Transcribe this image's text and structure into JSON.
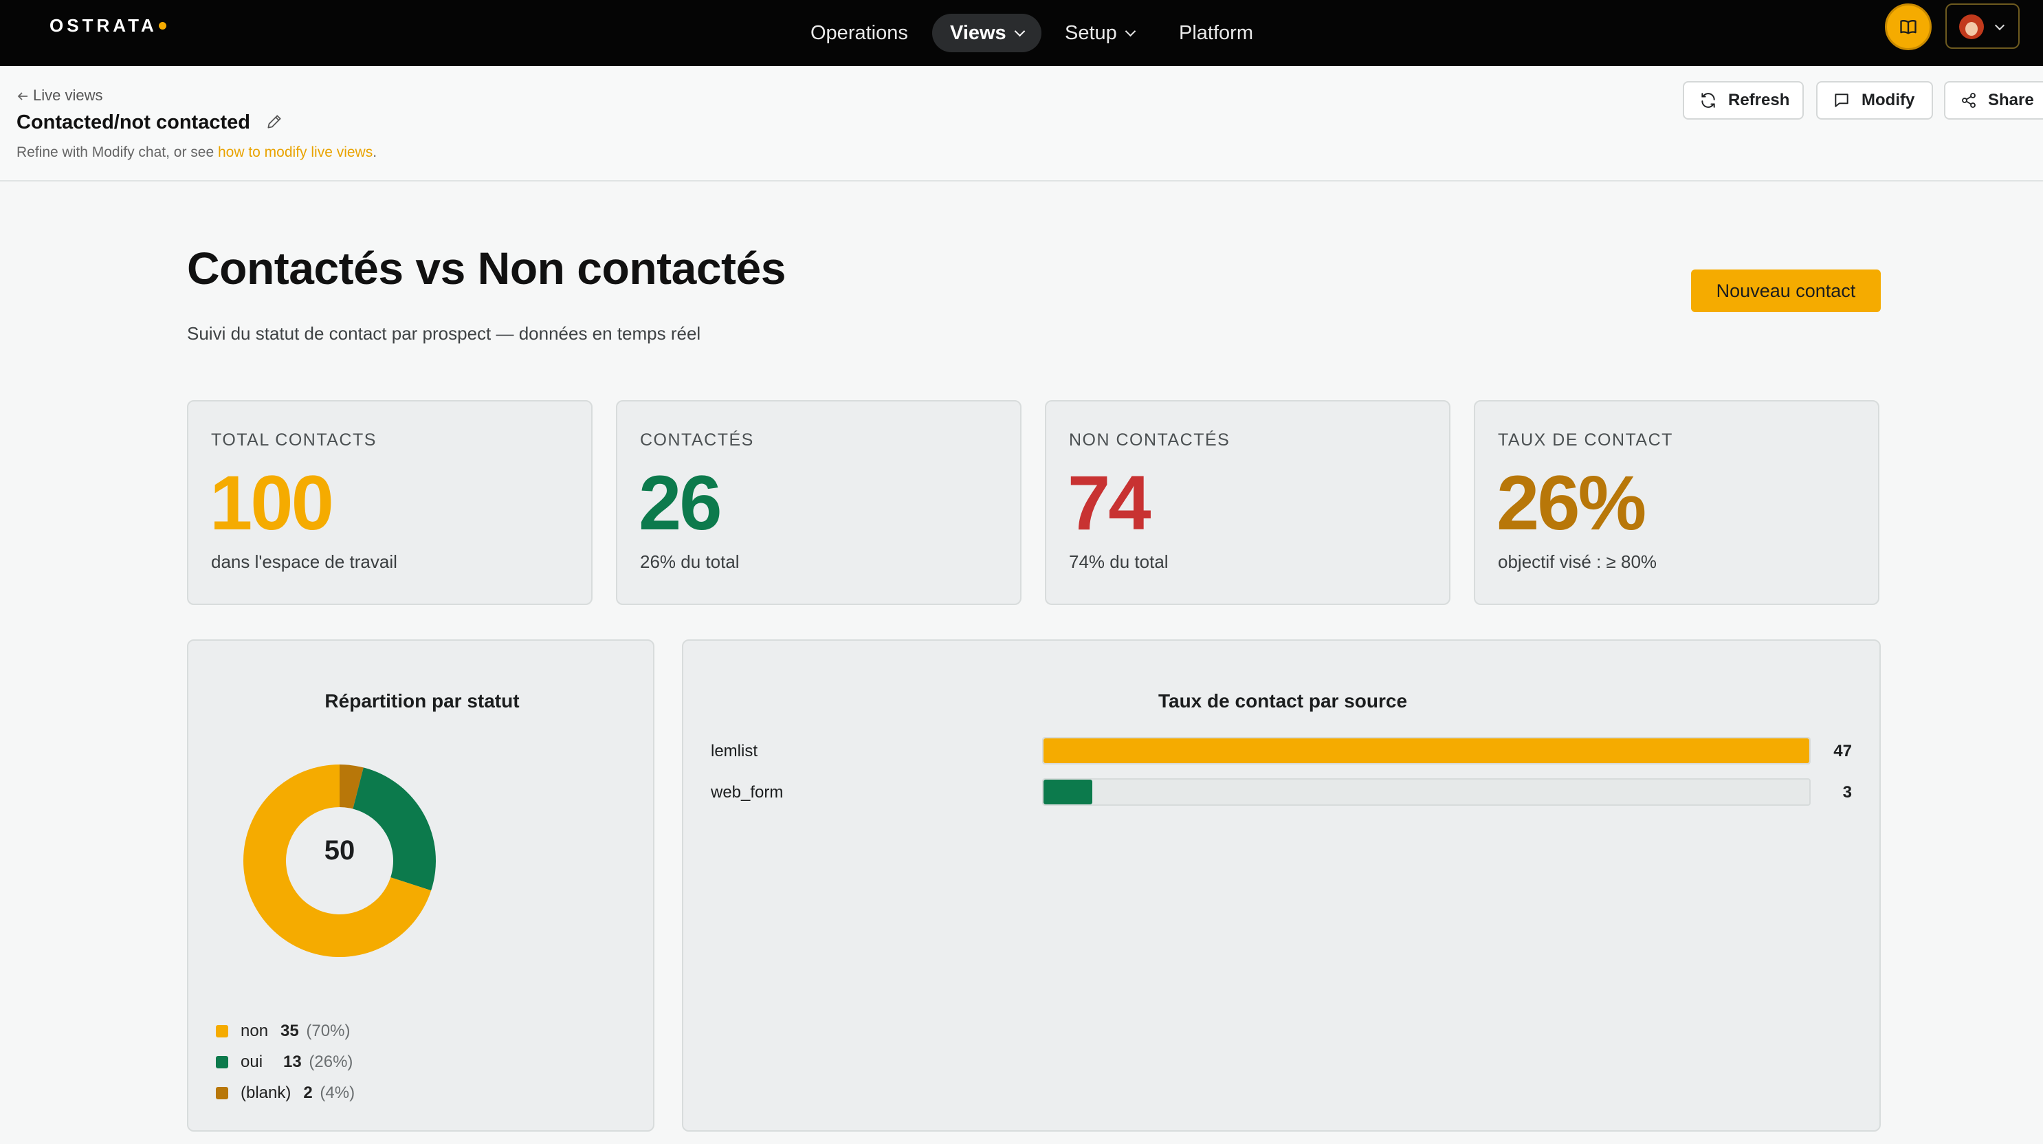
{
  "topbar": {
    "logo": "OSTRATA",
    "nav": [
      {
        "label": "Operations"
      },
      {
        "label": "Views"
      },
      {
        "label": "Setup"
      },
      {
        "label": "Platform"
      }
    ],
    "accent": "#f5ab00"
  },
  "header": {
    "back_label": "Live views",
    "title": "Contacted/not contacted",
    "subtitle_prefix": "Refine with Modify chat, or see ",
    "subtitle_link": "how to modify live views",
    "subtitle_suffix": ".",
    "buttons": {
      "refresh": "Refresh",
      "modify": "Modify",
      "share": "Share"
    }
  },
  "main": {
    "title": "Contactés vs Non contactés",
    "lead": "Suivi du statut de contact par prospect — données en temps réel",
    "new_button": "Nouveau contact",
    "kpis": [
      {
        "label": "TOTAL CONTACTS",
        "value": "100",
        "note": "dans l'espace de travail",
        "color": "#f5ab00"
      },
      {
        "label": "CONTACTÉS",
        "value": "26",
        "note": "26% du total",
        "color": "#0c7a4c"
      },
      {
        "label": "NON CONTACTÉS",
        "value": "74",
        "note": "74% du total",
        "color": "#c83232"
      },
      {
        "label": "TAUX DE CONTACT",
        "value": "26%",
        "note": "objectif visé : ≥ 80%",
        "color": "#b87709"
      }
    ]
  },
  "chart_data": [
    {
      "type": "pie",
      "title": "Répartition par statut",
      "center_label": "50",
      "slices": [
        {
          "name": "non",
          "value": 35,
          "pct": "(70%)",
          "color": "#f5ab00"
        },
        {
          "name": "oui",
          "value": 13,
          "pct": "(26%)",
          "color": "#0c7a4c"
        },
        {
          "name": "(blank)",
          "value": 2,
          "pct": "(4%)",
          "color": "#b87709"
        }
      ]
    },
    {
      "type": "bar",
      "orientation": "horizontal",
      "title": "Taux de contact par source",
      "categories": [
        "lemlist",
        "web_form"
      ],
      "values": [
        47,
        3
      ],
      "colors": [
        "#f5ab00",
        "#0c7a4c"
      ],
      "xlim": [
        0,
        47
      ]
    }
  ]
}
